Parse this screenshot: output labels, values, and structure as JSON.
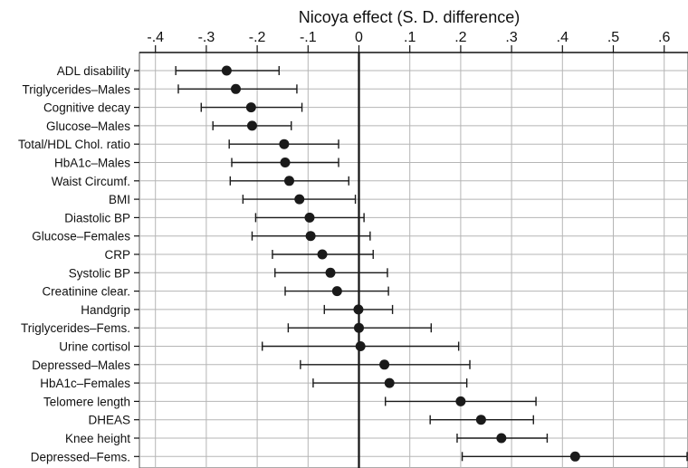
{
  "chart_data": {
    "type": "scatter",
    "title": "Nicoya effect (S. D. difference)",
    "xlabel": "Nicoya effect (S. D. difference)",
    "ylabel": "",
    "xlim": [
      -0.4,
      0.65
    ],
    "xticks": [
      -0.4,
      -0.3,
      -0.2,
      -0.1,
      0,
      0.1,
      0.2,
      0.3,
      0.4,
      0.5,
      0.6
    ],
    "xtick_labels": [
      "-.4",
      "-.3",
      "-.2",
      "-.1",
      "0",
      ".1",
      ".2",
      ".3",
      ".4",
      ".5",
      ".6"
    ],
    "x_axis_position": "top",
    "grid": true,
    "reference_line": 0,
    "marker_color": "#1a1a1a",
    "series": [
      {
        "categories": [
          "ADL disability",
          "Triglycerides–Males",
          "Cognitive decay",
          "Glucose–Males",
          "Total/HDL Chol. ratio",
          "HbA1c–Males",
          "Waist Circumf.",
          "BMI",
          "Diastolic BP",
          "Glucose–Females",
          "CRP",
          "Systolic BP",
          "Creatinine clear.",
          "Handgrip",
          "Triglycerides–Fems.",
          "Urine cortisol",
          "Depressed–Males",
          "HbA1c–Females",
          "Telomere length",
          "DHEAS",
          "Knee height",
          "Depressed–Fems."
        ],
        "estimates": [
          -0.26,
          -0.242,
          -0.212,
          -0.21,
          -0.147,
          -0.145,
          -0.137,
          -0.117,
          -0.097,
          -0.095,
          -0.072,
          -0.056,
          -0.043,
          -0.001,
          0.0,
          0.003,
          0.05,
          0.06,
          0.2,
          0.24,
          0.28,
          0.425
        ],
        "ci_low": [
          -0.36,
          -0.355,
          -0.31,
          -0.287,
          -0.255,
          -0.25,
          -0.253,
          -0.228,
          -0.203,
          -0.21,
          -0.17,
          -0.165,
          -0.145,
          -0.068,
          -0.139,
          -0.19,
          -0.115,
          -0.09,
          0.052,
          0.14,
          0.193,
          0.203
        ],
        "ci_high": [
          -0.157,
          -0.122,
          -0.112,
          -0.133,
          -0.04,
          -0.04,
          -0.02,
          -0.007,
          0.01,
          0.022,
          0.028,
          0.056,
          0.058,
          0.066,
          0.142,
          0.196,
          0.218,
          0.212,
          0.348,
          0.343,
          0.37,
          0.651
        ]
      }
    ]
  }
}
